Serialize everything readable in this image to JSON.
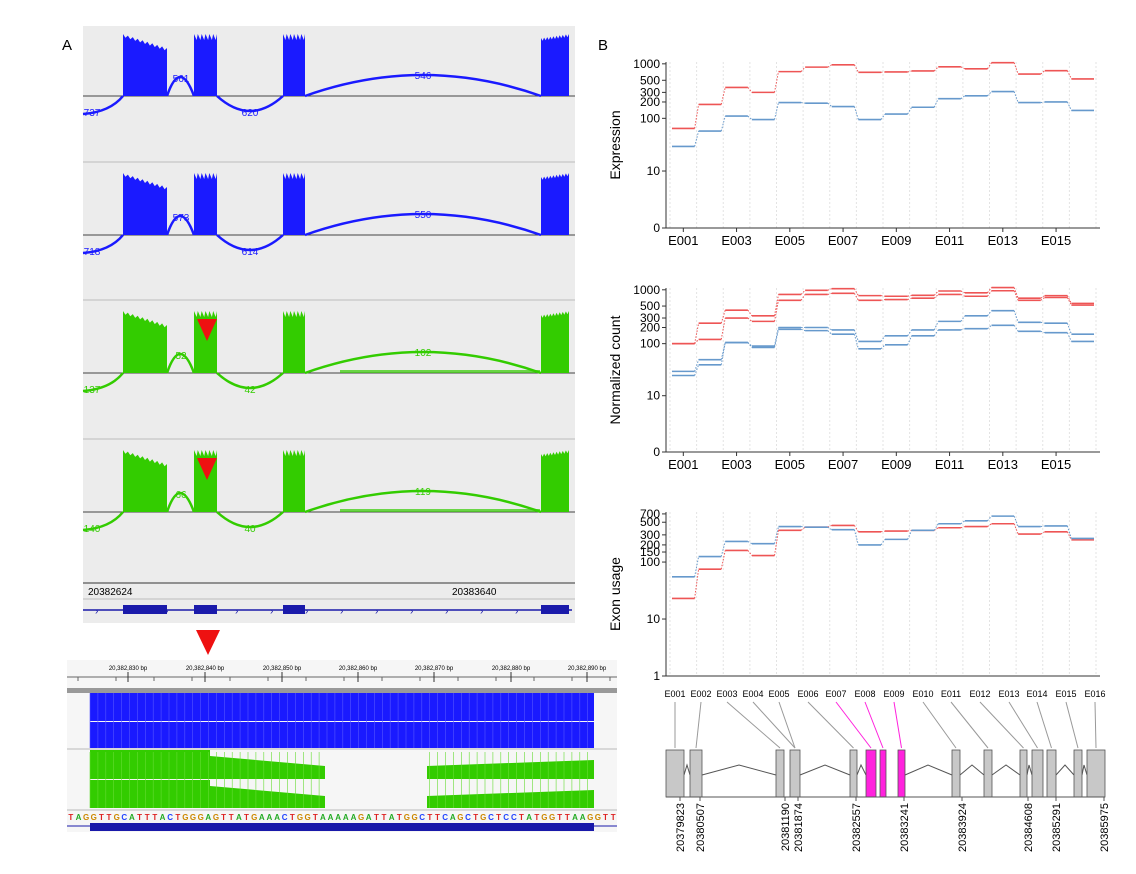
{
  "panel_a": {
    "label": "A",
    "coverage_tracks": [
      {
        "color": "#1a1aff",
        "junctions": [
          "737",
          "561",
          "620",
          "546"
        ]
      },
      {
        "color": "#1a1aff",
        "junctions": [
          "718",
          "573",
          "614",
          "550"
        ]
      },
      {
        "color": "#33cc00",
        "junctions": [
          "137",
          "52",
          "42",
          "102"
        ]
      },
      {
        "color": "#33cc00",
        "junctions": [
          "140",
          "66",
          "40",
          "119"
        ]
      }
    ],
    "ruler_labels": [
      "20382624",
      "20383640"
    ],
    "zoom_ruler_labels": [
      "20,382,830 bp",
      "20,382,840 bp",
      "20,382,850 bp",
      "20,382,860 bp",
      "20,382,870 bp",
      "20,382,880 bp",
      "20,382,890 bp"
    ],
    "sequence": "TAGGTTGCATTTACTGGGAGTTATGAAACTGGTAAAAAGATTATGGCTTCAGCTGCTCCTATGGTTAAGGTT",
    "arrow_color": "#ee1111"
  },
  "panel_b": {
    "label": "B",
    "colors": {
      "red": "#ee5555",
      "blue": "#6699cc",
      "highlight": "#ff22dd"
    },
    "exon_labels": [
      "E001",
      "E002",
      "E003",
      "E004",
      "E005",
      "E006",
      "E007",
      "E008",
      "E009",
      "E010",
      "E011",
      "E012",
      "E013",
      "E014",
      "E015",
      "E016"
    ],
    "highlighted_exons": [
      "E008",
      "E009"
    ],
    "coordinates": [
      "20379823",
      "20380507",
      "20381190",
      "20381874",
      "20382557",
      "20383241",
      "20383924",
      "20384608",
      "20385291",
      "20385975"
    ]
  },
  "chart_data": [
    {
      "type": "line",
      "ylabel": "Expression",
      "yscale": "log",
      "yticks": [
        "0",
        "10",
        "100",
        "200",
        "300",
        "500",
        "1000"
      ],
      "x_tick_labels": [
        "E001",
        "E003",
        "E005",
        "E007",
        "E009",
        "E011",
        "E013",
        "E015"
      ],
      "categories": [
        "E001",
        "E002",
        "E003",
        "E004",
        "E005",
        "E006",
        "E007",
        "E008",
        "E009",
        "E010",
        "E011",
        "E012",
        "E013",
        "E014",
        "E015",
        "E016"
      ],
      "series": [
        {
          "color": "#ee5555",
          "values": [
            65,
            180,
            370,
            300,
            720,
            870,
            960,
            700,
            710,
            740,
            880,
            810,
            1050,
            650,
            750,
            530
          ]
        },
        {
          "color": "#6699cc",
          "values": [
            30,
            58,
            110,
            95,
            195,
            190,
            165,
            95,
            120,
            160,
            230,
            260,
            310,
            195,
            200,
            140
          ]
        }
      ]
    },
    {
      "type": "line",
      "ylabel": "Normalized count",
      "yscale": "log",
      "yticks": [
        "0",
        "10",
        "100",
        "200",
        "300",
        "500",
        "1000"
      ],
      "x_tick_labels": [
        "E001",
        "E003",
        "E005",
        "E007",
        "E009",
        "E011",
        "E013",
        "E015"
      ],
      "categories": [
        "E001",
        "E002",
        "E003",
        "E004",
        "E005",
        "E006",
        "E007",
        "E008",
        "E009",
        "E010",
        "E011",
        "E012",
        "E013",
        "E014",
        "E015",
        "E016"
      ],
      "series": [
        {
          "color": "#ee5555",
          "values": [
            100,
            240,
            420,
            330,
            820,
            980,
            1050,
            780,
            760,
            790,
            950,
            880,
            1100,
            700,
            780,
            560
          ]
        },
        {
          "color": "#ee5555",
          "values": [
            100,
            120,
            300,
            260,
            640,
            820,
            860,
            640,
            660,
            700,
            820,
            760,
            960,
            640,
            720,
            520
          ]
        },
        {
          "color": "#6699cc",
          "values": [
            30,
            50,
            105,
            90,
            200,
            200,
            180,
            110,
            140,
            180,
            260,
            330,
            410,
            250,
            240,
            150
          ]
        },
        {
          "color": "#6699cc",
          "values": [
            25,
            40,
            105,
            85,
            185,
            175,
            150,
            80,
            95,
            140,
            180,
            190,
            220,
            170,
            160,
            110
          ]
        }
      ]
    },
    {
      "type": "line",
      "ylabel": "Exon usage",
      "yscale": "log",
      "yticks": [
        "1",
        "10",
        "100",
        "150",
        "200",
        "300",
        "500",
        "700"
      ],
      "x_tick_labels": [],
      "categories": [
        "E001",
        "E002",
        "E003",
        "E004",
        "E005",
        "E006",
        "E007",
        "E008",
        "E009",
        "E010",
        "E011",
        "E012",
        "E013",
        "E014",
        "E015",
        "E016"
      ],
      "series": [
        {
          "color": "#ee5555",
          "values": [
            23,
            75,
            160,
            130,
            360,
            410,
            440,
            340,
            350,
            360,
            400,
            420,
            470,
            310,
            340,
            245
          ]
        },
        {
          "color": "#6699cc",
          "values": [
            55,
            125,
            230,
            210,
            420,
            410,
            370,
            200,
            250,
            360,
            470,
            530,
            640,
            420,
            430,
            260
          ]
        }
      ]
    }
  ]
}
